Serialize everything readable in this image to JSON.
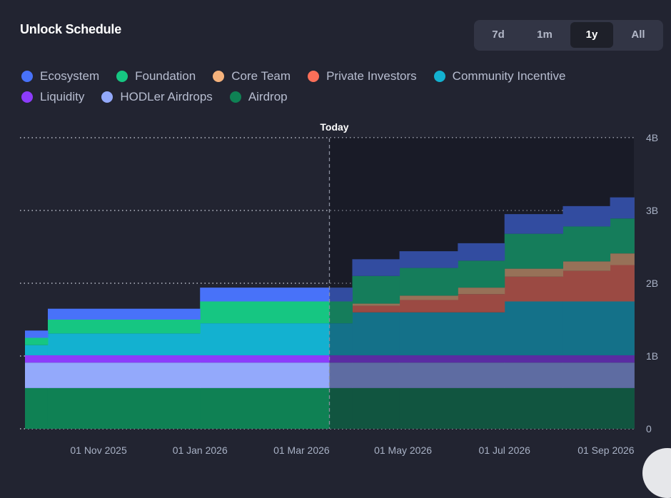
{
  "header": {
    "title": "Unlock Schedule"
  },
  "range_selector": {
    "options": [
      {
        "label": "7d",
        "active": false
      },
      {
        "label": "1m",
        "active": false
      },
      {
        "label": "1y",
        "active": true
      },
      {
        "label": "All",
        "active": false
      }
    ]
  },
  "chart_data": {
    "type": "area",
    "title": "Unlock Schedule",
    "stacked": true,
    "step": true,
    "xlabel": "",
    "ylabel": "",
    "ylim": [
      0,
      4000000000
    ],
    "y_ticks": [
      "0",
      "1B",
      "2B",
      "3B",
      "4B"
    ],
    "y_tick_values": [
      0,
      1000000000,
      2000000000,
      3000000000,
      4000000000
    ],
    "x_ticks": [
      "01 Nov 2025",
      "01 Jan 2026",
      "01 Mar 2026",
      "01 May 2026",
      "01 Jul 2026",
      "01 Sep 2026"
    ],
    "x_tick_months": [
      2,
      4,
      6,
      8,
      10,
      12
    ],
    "x_range_months": [
      0.55,
      12.55
    ],
    "today_label": "Today",
    "today_month": 6.55,
    "grid": "horizontal-dotted",
    "legend_position": "top-left",
    "step_starts_months": [
      0.55,
      1.0,
      4.0,
      7.0,
      7.93,
      9.08,
      10.0,
      11.15,
      12.08
    ],
    "series": [
      {
        "name": "Airdrop",
        "color": "#0f8154",
        "values": [
          0.56,
          0.56,
          0.56,
          0.56,
          0.56,
          0.56,
          0.56,
          0.56,
          0.56
        ]
      },
      {
        "name": "HODLer Airdrops",
        "color": "#93a9fb",
        "values": [
          0.35,
          0.35,
          0.35,
          0.35,
          0.35,
          0.35,
          0.35,
          0.35,
          0.35
        ]
      },
      {
        "name": "Liquidity",
        "color": "#8c3cfb",
        "values": [
          0.1,
          0.1,
          0.1,
          0.1,
          0.1,
          0.1,
          0.1,
          0.1,
          0.1
        ]
      },
      {
        "name": "Community Incentive",
        "color": "#13b1d0",
        "values": [
          0.14,
          0.3,
          0.44,
          0.59,
          0.59,
          0.59,
          0.74,
          0.74,
          0.74
        ]
      },
      {
        "name": "Private Investors",
        "color": "#fb6f59",
        "values": [
          0,
          0,
          0,
          0.09,
          0.17,
          0.25,
          0.34,
          0.42,
          0.5
        ]
      },
      {
        "name": "Core Team",
        "color": "#f5b27c",
        "values": [
          0,
          0,
          0,
          0.03,
          0.06,
          0.09,
          0.11,
          0.13,
          0.16
        ]
      },
      {
        "name": "Foundation",
        "color": "#16c682",
        "values": [
          0.1,
          0.19,
          0.3,
          0.38,
          0.38,
          0.37,
          0.48,
          0.48,
          0.48
        ]
      },
      {
        "name": "Ecosystem",
        "color": "#4872f9",
        "values": [
          0.1,
          0.15,
          0.19,
          0.23,
          0.23,
          0.24,
          0.27,
          0.28,
          0.29
        ]
      }
    ],
    "value_unit": "billion tokens"
  },
  "legend": {
    "rows": [
      [
        {
          "name": "Ecosystem",
          "color": "#4872f9"
        },
        {
          "name": "Foundation",
          "color": "#16c682"
        },
        {
          "name": "Core Team",
          "color": "#f5b27c"
        },
        {
          "name": "Private Investors",
          "color": "#fb6f59"
        },
        {
          "name": "Community Incentive",
          "color": "#13b1d0"
        }
      ],
      [
        {
          "name": "Liquidity",
          "color": "#8c3cfb"
        },
        {
          "name": "HODLer Airdrops",
          "color": "#93a9fb"
        },
        {
          "name": "Airdrop",
          "color": "#0f8154"
        }
      ]
    ]
  }
}
